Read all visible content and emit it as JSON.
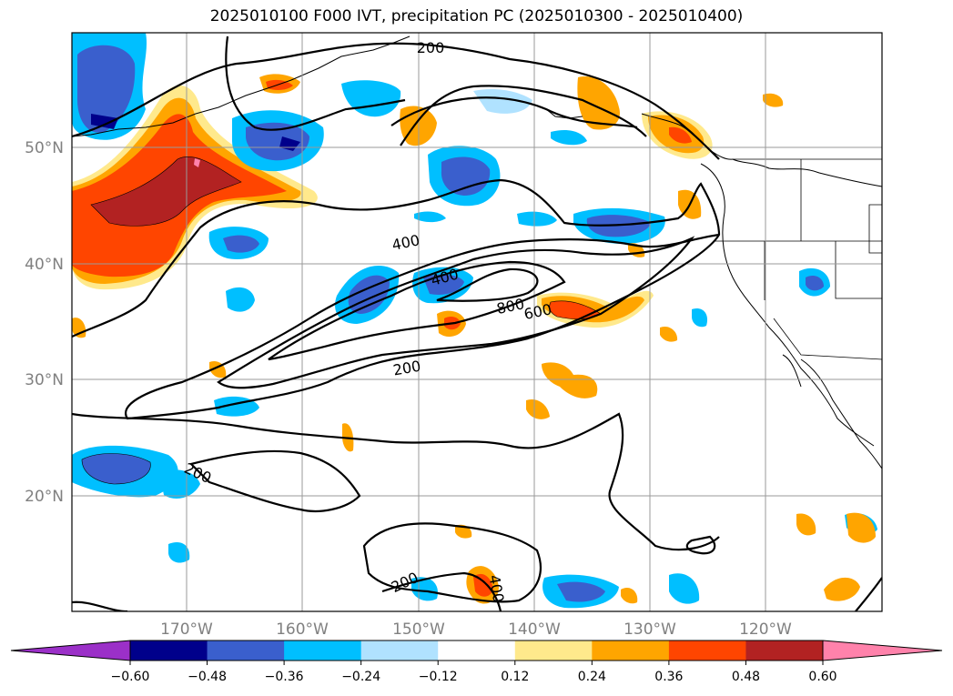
{
  "title": "2025010100 F000 IVT, precipitation PC (2025010300 - 2025010400)",
  "map": {
    "lon_ticks": [
      "170°W",
      "160°W",
      "150°W",
      "140°W",
      "130°W",
      "120°W"
    ],
    "lat_ticks": [
      "50°N",
      "40°N",
      "30°N",
      "20°N"
    ],
    "ivt_contour_labels": [
      "200",
      "400",
      "400",
      "800",
      "600",
      "200",
      "200",
      "200",
      "400"
    ]
  },
  "colorbar": {
    "ticks": [
      "−0.60",
      "−0.48",
      "−0.36",
      "−0.24",
      "−0.12",
      "0.12",
      "0.24",
      "0.36",
      "0.48",
      "0.60"
    ],
    "colors": [
      "#9b30c8",
      "#00008b",
      "#3a5fcd",
      "#00bfff",
      "#b0e2ff",
      "#ffffff",
      "#ffe98c",
      "#ffa500",
      "#ff4500",
      "#b22222",
      "#ff82ab"
    ]
  }
}
